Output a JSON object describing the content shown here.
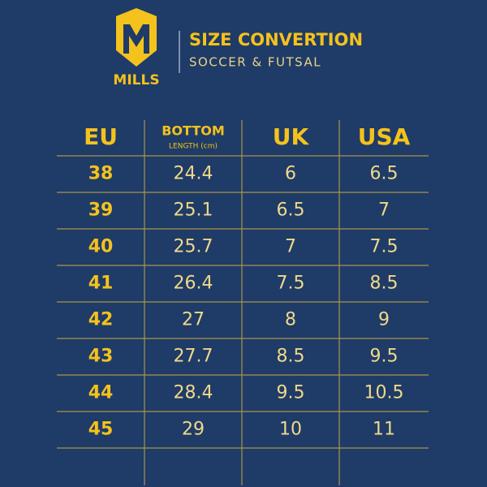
{
  "header": {
    "logo_text": "MILLS",
    "title": "SIZE CONVERTION",
    "subtitle": "SOCCER & FUTSAL"
  },
  "table": {
    "columns": [
      "EU",
      "BOTTOM",
      "UK",
      "USA"
    ],
    "column_note": "LENGTH (cm)",
    "rows": [
      [
        "38",
        "24.4",
        "6",
        "6.5"
      ],
      [
        "39",
        "25.1",
        "6.5",
        "7"
      ],
      [
        "40",
        "25.7",
        "7",
        "7.5"
      ],
      [
        "41",
        "26.4",
        "7.5",
        "8.5"
      ],
      [
        "42",
        "27",
        "8",
        "9"
      ],
      [
        "43",
        "27.7",
        "8.5",
        "9.5"
      ],
      [
        "44",
        "28.4",
        "9.5",
        "10.5"
      ],
      [
        "45",
        "29",
        "10",
        "11"
      ]
    ]
  }
}
